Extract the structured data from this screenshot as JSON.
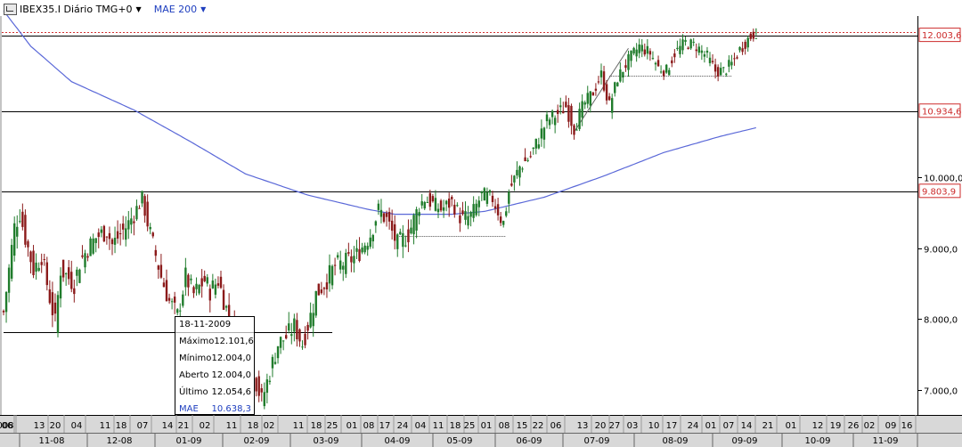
{
  "header": {
    "symbol_label": "IBEX35.I Diário TMG+0",
    "indicator_label": "MAE 200"
  },
  "chart_data": {
    "type": "candlestick",
    "title": "IBEX35.I Diário TMG+0",
    "ylim": [
      6650,
      12250
    ],
    "y_ticks": [
      "7.000,0",
      "8.000,0",
      "9.000,0",
      "10.000,0"
    ],
    "price_labels": [
      {
        "text": "12.003,6",
        "value": 12003.6,
        "style": "red"
      },
      {
        "text": "10.934,6",
        "value": 10934.6,
        "style": "red"
      },
      {
        "text": "9.803,9",
        "value": 9803.9,
        "style": "red"
      }
    ],
    "horizontal_levels": [
      {
        "value": 12003.6,
        "kind": "solid"
      },
      {
        "value": 10934.6,
        "kind": "solid"
      },
      {
        "value": 9803.9,
        "kind": "solid"
      },
      {
        "value": 7820,
        "kind": "solid",
        "from": "2008-10-27",
        "to": "2009-04-14"
      },
      {
        "value": 12050,
        "kind": "dotted-red"
      },
      {
        "value": 9170,
        "kind": "dotted",
        "from": "2009-05-18",
        "to": "2009-07-13"
      },
      {
        "value": 11430,
        "kind": "dotted",
        "from": "2009-09-03",
        "to": "2009-11-05"
      }
    ],
    "trendlines": [
      {
        "x1": "2009-08-17",
        "y1": 10640,
        "x2": "2009-09-14",
        "y2": 11820
      }
    ],
    "x_day_labels": [
      "008",
      "06",
      "13",
      "20",
      "04",
      "11",
      "18",
      "07",
      "14",
      "21",
      "02",
      "11",
      "18",
      "02",
      "11",
      "18",
      "25",
      "01",
      "08",
      "17",
      "24",
      "04",
      "11",
      "18",
      "25",
      "01",
      "08",
      "15",
      "22",
      "06",
      "13",
      "20",
      "27",
      "03",
      "10",
      "17",
      "24",
      "01",
      "07",
      "14",
      "21",
      "01",
      "12",
      "19",
      "26",
      "02",
      "09",
      "16"
    ],
    "x_month_labels": [
      "11-08",
      "12-08",
      "01-09",
      "02-09",
      "03-09",
      "04-09",
      "05-09",
      "06-09",
      "07-09",
      "08-09",
      "09-09",
      "10-09",
      "11-09"
    ],
    "series": [
      {
        "name": "IBEX35.I",
        "type": "candles",
        "anchors": [
          [
            "2008-10-27",
            8100
          ],
          [
            "2008-10-31",
            9300
          ],
          [
            "2008-11-04",
            9500
          ],
          [
            "2008-11-06",
            9150
          ],
          [
            "2008-11-11",
            8700
          ],
          [
            "2008-11-14",
            8900
          ],
          [
            "2008-11-19",
            8300
          ],
          [
            "2008-11-21",
            7950
          ],
          [
            "2008-11-25",
            8700
          ],
          [
            "2008-12-02",
            8500
          ],
          [
            "2008-12-04",
            8800
          ],
          [
            "2008-12-09",
            9000
          ],
          [
            "2008-12-12",
            9150
          ],
          [
            "2008-12-18",
            9250
          ],
          [
            "2008-12-22",
            9050
          ],
          [
            "2008-12-30",
            9350
          ],
          [
            "2009-01-06",
            9700
          ],
          [
            "2009-01-09",
            9200
          ],
          [
            "2009-01-15",
            8600
          ],
          [
            "2009-01-20",
            8250
          ],
          [
            "2009-01-23",
            8050
          ],
          [
            "2009-01-28",
            8600
          ],
          [
            "2009-02-02",
            8350
          ],
          [
            "2009-02-06",
            8550
          ],
          [
            "2009-02-10",
            8400
          ],
          [
            "2009-02-13",
            8550
          ],
          [
            "2009-02-18",
            8150
          ],
          [
            "2009-02-23",
            7850
          ],
          [
            "2009-02-26",
            7650
          ],
          [
            "2009-03-03",
            7350
          ],
          [
            "2009-03-09",
            6850
          ],
          [
            "2009-03-12",
            7250
          ],
          [
            "2009-03-17",
            7650
          ],
          [
            "2009-03-20",
            7750
          ],
          [
            "2009-03-25",
            7900
          ],
          [
            "2009-03-30",
            7650
          ],
          [
            "2009-04-02",
            8050
          ],
          [
            "2009-04-06",
            8350
          ],
          [
            "2009-04-09",
            8500
          ],
          [
            "2009-04-15",
            8750
          ],
          [
            "2009-04-21",
            8800
          ],
          [
            "2009-04-27",
            8900
          ],
          [
            "2009-05-04",
            9200
          ],
          [
            "2009-05-07",
            9550
          ],
          [
            "2009-05-12",
            9400
          ],
          [
            "2009-05-18",
            9050
          ],
          [
            "2009-05-22",
            9200
          ],
          [
            "2009-05-28",
            9600
          ],
          [
            "2009-06-01",
            9700
          ],
          [
            "2009-06-05",
            9600
          ],
          [
            "2009-06-09",
            9550
          ],
          [
            "2009-06-15",
            9650
          ],
          [
            "2009-06-19",
            9400
          ],
          [
            "2009-06-24",
            9450
          ],
          [
            "2009-06-30",
            9750
          ],
          [
            "2009-07-06",
            9700
          ],
          [
            "2009-07-10",
            9350
          ],
          [
            "2009-07-14",
            9800
          ],
          [
            "2009-07-20",
            10150
          ],
          [
            "2009-07-24",
            10300
          ],
          [
            "2009-07-29",
            10550
          ],
          [
            "2009-08-03",
            10800
          ],
          [
            "2009-08-07",
            10900
          ],
          [
            "2009-08-12",
            11000
          ],
          [
            "2009-08-17",
            10700
          ],
          [
            "2009-08-21",
            11050
          ],
          [
            "2009-08-26",
            11200
          ],
          [
            "2009-08-31",
            11450
          ],
          [
            "2009-09-03",
            11000
          ],
          [
            "2009-09-08",
            11400
          ],
          [
            "2009-09-14",
            11650
          ],
          [
            "2009-09-18",
            11850
          ],
          [
            "2009-09-24",
            11750
          ],
          [
            "2009-09-29",
            11550
          ],
          [
            "2009-10-02",
            11500
          ],
          [
            "2009-10-07",
            11750
          ],
          [
            "2009-10-13",
            11900
          ],
          [
            "2009-10-19",
            11850
          ],
          [
            "2009-10-23",
            11700
          ],
          [
            "2009-10-28",
            11500
          ],
          [
            "2009-11-02",
            11500
          ],
          [
            "2009-11-05",
            11600
          ],
          [
            "2009-11-10",
            11800
          ],
          [
            "2009-11-13",
            11950
          ],
          [
            "2009-11-18",
            12054.6
          ]
        ]
      },
      {
        "name": "MAE 200",
        "type": "line",
        "anchors": [
          [
            "2008-10-27",
            12350
          ],
          [
            "2008-11-10",
            11850
          ],
          [
            "2008-12-01",
            11350
          ],
          [
            "2009-01-01",
            10950
          ],
          [
            "2009-02-01",
            10500
          ],
          [
            "2009-03-01",
            10050
          ],
          [
            "2009-04-01",
            9750
          ],
          [
            "2009-05-01",
            9550
          ],
          [
            "2009-05-15",
            9480
          ],
          [
            "2009-06-01",
            9480
          ],
          [
            "2009-06-15",
            9480
          ],
          [
            "2009-07-01",
            9520
          ],
          [
            "2009-08-01",
            9720
          ],
          [
            "2009-09-01",
            10020
          ],
          [
            "2009-10-01",
            10350
          ],
          [
            "2009-11-01",
            10580
          ],
          [
            "2009-11-18",
            10700
          ]
        ]
      }
    ],
    "tooltip": {
      "date": "18-11-2009",
      "rows": [
        {
          "label": "Máximo",
          "value": "12.101,6"
        },
        {
          "label": "Mínimo",
          "value": "12.004,0"
        },
        {
          "label": "Aberto",
          "value": "12.004,0"
        },
        {
          "label": "Último",
          "value": "12.054,6"
        }
      ],
      "indicator": {
        "label": "MAE",
        "value": "10.638,3"
      }
    },
    "colors": {
      "up": "#207c2c",
      "down": "#8b1a1a",
      "ma": "#5a68d8",
      "axis_bg": "#d8d8d8",
      "price_label": "#cc2a2a"
    }
  }
}
